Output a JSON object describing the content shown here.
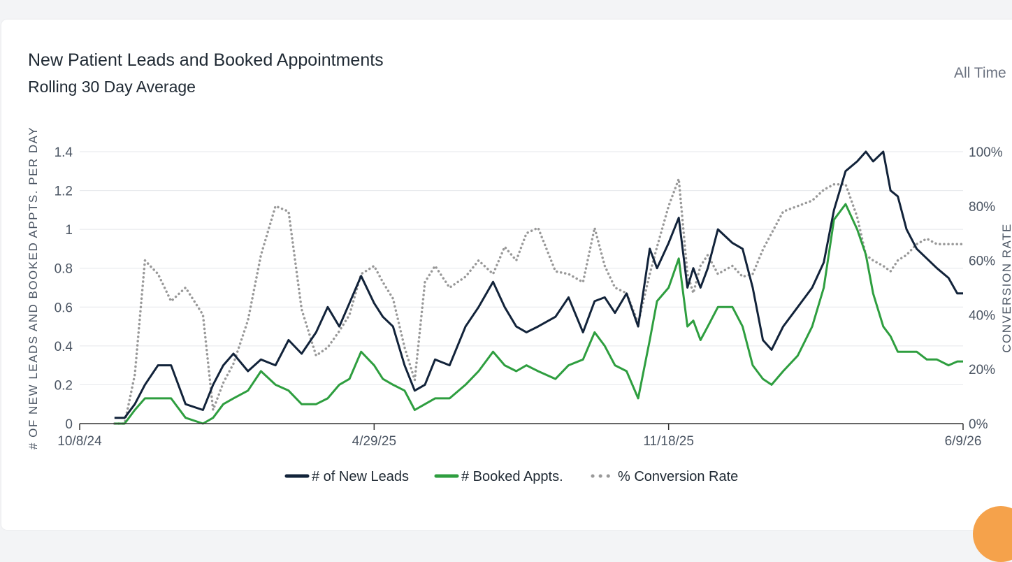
{
  "header": {
    "title": "New Patient Leads and Booked Appointments",
    "subtitle": "Rolling 30 Day Average",
    "range_label": "All Time"
  },
  "chart_data": {
    "type": "line",
    "title": "New Patient Leads and Booked Appointments",
    "subtitle": "Rolling 30 Day Average",
    "xlabel": "",
    "ylabel": "# OF NEW LEADS AND BOOKED APPTS. PER DAY",
    "y2label": "CONVERSION RATE",
    "xlim": [
      "2024-10-08",
      "2026-06-09"
    ],
    "x_ticks": [
      "10/8/24",
      "4/29/25",
      "11/18/25",
      "6/9/26"
    ],
    "ylim": [
      0,
      1.4
    ],
    "y_ticks": [
      "0",
      "0.2",
      "0.4",
      "0.6",
      "0.8",
      "1",
      "1.2",
      "1.4"
    ],
    "y2lim": [
      0,
      100
    ],
    "y2_ticks": [
      "0%",
      "20%",
      "40%",
      "60%",
      "80%",
      "100%"
    ],
    "grid": true,
    "legend_position": "bottom-center",
    "colors": {
      "leads": "#12233a",
      "booked": "#2e9e3f",
      "conversion": "#999999"
    },
    "series": [
      {
        "name": "# of New Leads",
        "axis": "left",
        "x": [
          "2024-11-01",
          "2024-11-08",
          "2024-11-15",
          "2024-11-22",
          "2024-12-01",
          "2024-12-10",
          "2024-12-20",
          "2025-01-01",
          "2025-01-08",
          "2025-01-15",
          "2025-01-22",
          "2025-02-01",
          "2025-02-10",
          "2025-02-20",
          "2025-03-01",
          "2025-03-10",
          "2025-03-20",
          "2025-03-28",
          "2025-04-05",
          "2025-04-12",
          "2025-04-20",
          "2025-04-29",
          "2025-05-05",
          "2025-05-12",
          "2025-05-20",
          "2025-05-27",
          "2025-06-03",
          "2025-06-10",
          "2025-06-20",
          "2025-07-01",
          "2025-07-10",
          "2025-07-20",
          "2025-07-28",
          "2025-08-05",
          "2025-08-12",
          "2025-08-20",
          "2025-09-01",
          "2025-09-10",
          "2025-09-20",
          "2025-09-28",
          "2025-10-05",
          "2025-10-12",
          "2025-10-20",
          "2025-10-28",
          "2025-11-05",
          "2025-11-10",
          "2025-11-18",
          "2025-11-25",
          "2025-12-01",
          "2025-12-05",
          "2025-12-10",
          "2025-12-15",
          "2025-12-22",
          "2026-01-01",
          "2026-01-08",
          "2026-01-15",
          "2026-01-22",
          "2026-01-28",
          "2026-02-05",
          "2026-02-15",
          "2026-02-25",
          "2026-03-05",
          "2026-03-12",
          "2026-03-20",
          "2026-03-28",
          "2026-04-03",
          "2026-04-08",
          "2026-04-15",
          "2026-04-20",
          "2026-04-25",
          "2026-05-01",
          "2026-05-08",
          "2026-05-15",
          "2026-05-22",
          "2026-05-30",
          "2026-06-05",
          "2026-06-09"
        ],
        "values": [
          0.03,
          0.03,
          0.1,
          0.2,
          0.3,
          0.3,
          0.1,
          0.07,
          0.2,
          0.3,
          0.36,
          0.27,
          0.33,
          0.3,
          0.43,
          0.36,
          0.47,
          0.6,
          0.5,
          0.62,
          0.76,
          0.62,
          0.55,
          0.5,
          0.3,
          0.17,
          0.2,
          0.33,
          0.3,
          0.5,
          0.6,
          0.73,
          0.6,
          0.5,
          0.47,
          0.5,
          0.55,
          0.65,
          0.47,
          0.63,
          0.65,
          0.57,
          0.67,
          0.5,
          0.9,
          0.8,
          0.93,
          1.06,
          0.7,
          0.8,
          0.7,
          0.8,
          1.0,
          0.93,
          0.9,
          0.7,
          0.43,
          0.38,
          0.5,
          0.6,
          0.7,
          0.83,
          1.1,
          1.3,
          1.35,
          1.4,
          1.35,
          1.4,
          1.2,
          1.17,
          1.0,
          0.9,
          0.85,
          0.8,
          0.75,
          0.67,
          0.67
        ]
      },
      {
        "name": "# Booked Appts.",
        "axis": "left",
        "x": [
          "2024-11-01",
          "2024-11-08",
          "2024-11-15",
          "2024-11-22",
          "2024-12-01",
          "2024-12-10",
          "2024-12-20",
          "2025-01-01",
          "2025-01-08",
          "2025-01-15",
          "2025-01-22",
          "2025-02-01",
          "2025-02-10",
          "2025-02-20",
          "2025-03-01",
          "2025-03-10",
          "2025-03-20",
          "2025-03-28",
          "2025-04-05",
          "2025-04-12",
          "2025-04-20",
          "2025-04-29",
          "2025-05-05",
          "2025-05-12",
          "2025-05-20",
          "2025-05-27",
          "2025-06-03",
          "2025-06-10",
          "2025-06-20",
          "2025-07-01",
          "2025-07-10",
          "2025-07-20",
          "2025-07-28",
          "2025-08-05",
          "2025-08-12",
          "2025-08-20",
          "2025-09-01",
          "2025-09-10",
          "2025-09-20",
          "2025-09-28",
          "2025-10-05",
          "2025-10-12",
          "2025-10-20",
          "2025-10-28",
          "2025-11-05",
          "2025-11-10",
          "2025-11-18",
          "2025-11-25",
          "2025-12-01",
          "2025-12-05",
          "2025-12-10",
          "2025-12-15",
          "2025-12-22",
          "2026-01-01",
          "2026-01-08",
          "2026-01-15",
          "2026-01-22",
          "2026-01-28",
          "2026-02-05",
          "2026-02-15",
          "2026-02-25",
          "2026-03-05",
          "2026-03-12",
          "2026-03-20",
          "2026-03-28",
          "2026-04-03",
          "2026-04-08",
          "2026-04-15",
          "2026-04-20",
          "2026-04-25",
          "2026-05-01",
          "2026-05-08",
          "2026-05-15",
          "2026-05-22",
          "2026-05-30",
          "2026-06-05",
          "2026-06-09"
        ],
        "values": [
          0.0,
          0.0,
          0.07,
          0.13,
          0.13,
          0.13,
          0.03,
          0.0,
          0.03,
          0.1,
          0.13,
          0.17,
          0.27,
          0.2,
          0.17,
          0.1,
          0.1,
          0.13,
          0.2,
          0.23,
          0.37,
          0.3,
          0.23,
          0.2,
          0.17,
          0.07,
          0.1,
          0.13,
          0.13,
          0.2,
          0.27,
          0.37,
          0.3,
          0.27,
          0.3,
          0.27,
          0.23,
          0.3,
          0.33,
          0.47,
          0.4,
          0.3,
          0.27,
          0.13,
          0.43,
          0.63,
          0.7,
          0.85,
          0.5,
          0.53,
          0.43,
          0.5,
          0.6,
          0.6,
          0.5,
          0.3,
          0.23,
          0.2,
          0.27,
          0.35,
          0.5,
          0.7,
          1.05,
          1.13,
          1.0,
          0.87,
          0.67,
          0.5,
          0.45,
          0.37,
          0.37,
          0.37,
          0.33,
          0.33,
          0.3,
          0.32,
          0.32
        ]
      },
      {
        "name": "% Conversion Rate",
        "axis": "right",
        "x": [
          "2024-11-01",
          "2024-11-08",
          "2024-11-15",
          "2024-11-22",
          "2024-12-01",
          "2024-12-10",
          "2024-12-20",
          "2025-01-01",
          "2025-01-08",
          "2025-01-15",
          "2025-01-22",
          "2025-02-01",
          "2025-02-10",
          "2025-02-20",
          "2025-03-01",
          "2025-03-10",
          "2025-03-20",
          "2025-03-28",
          "2025-04-05",
          "2025-04-12",
          "2025-04-20",
          "2025-04-29",
          "2025-05-05",
          "2025-05-12",
          "2025-05-20",
          "2025-05-27",
          "2025-06-03",
          "2025-06-10",
          "2025-06-20",
          "2025-07-01",
          "2025-07-10",
          "2025-07-20",
          "2025-07-28",
          "2025-08-05",
          "2025-08-12",
          "2025-08-20",
          "2025-09-01",
          "2025-09-10",
          "2025-09-20",
          "2025-09-28",
          "2025-10-05",
          "2025-10-12",
          "2025-10-20",
          "2025-10-28",
          "2025-11-05",
          "2025-11-10",
          "2025-11-18",
          "2025-11-25",
          "2025-12-01",
          "2025-12-05",
          "2025-12-10",
          "2025-12-15",
          "2025-12-22",
          "2026-01-01",
          "2026-01-08",
          "2026-01-15",
          "2026-01-22",
          "2026-01-28",
          "2026-02-05",
          "2026-02-15",
          "2026-02-25",
          "2026-03-05",
          "2026-03-12",
          "2026-03-20",
          "2026-03-28",
          "2026-04-03",
          "2026-04-08",
          "2026-04-15",
          "2026-04-20",
          "2026-04-25",
          "2026-05-01",
          "2026-05-08",
          "2026-05-15",
          "2026-05-22",
          "2026-05-30",
          "2026-06-05",
          "2026-06-09"
        ],
        "values": [
          0,
          0,
          18,
          60,
          55,
          45,
          50,
          40,
          5,
          15,
          22,
          38,
          62,
          80,
          78,
          42,
          25,
          28,
          34,
          40,
          55,
          58,
          52,
          46,
          28,
          16,
          52,
          58,
          50,
          54,
          60,
          55,
          65,
          60,
          70,
          72,
          56,
          55,
          52,
          72,
          58,
          50,
          48,
          37,
          55,
          65,
          80,
          90,
          55,
          48,
          58,
          62,
          55,
          58,
          54,
          55,
          64,
          70,
          78,
          80,
          82,
          86,
          88,
          88,
          76,
          62,
          60,
          58,
          56,
          60,
          62,
          66,
          68,
          66,
          66,
          66,
          66
        ]
      }
    ]
  }
}
